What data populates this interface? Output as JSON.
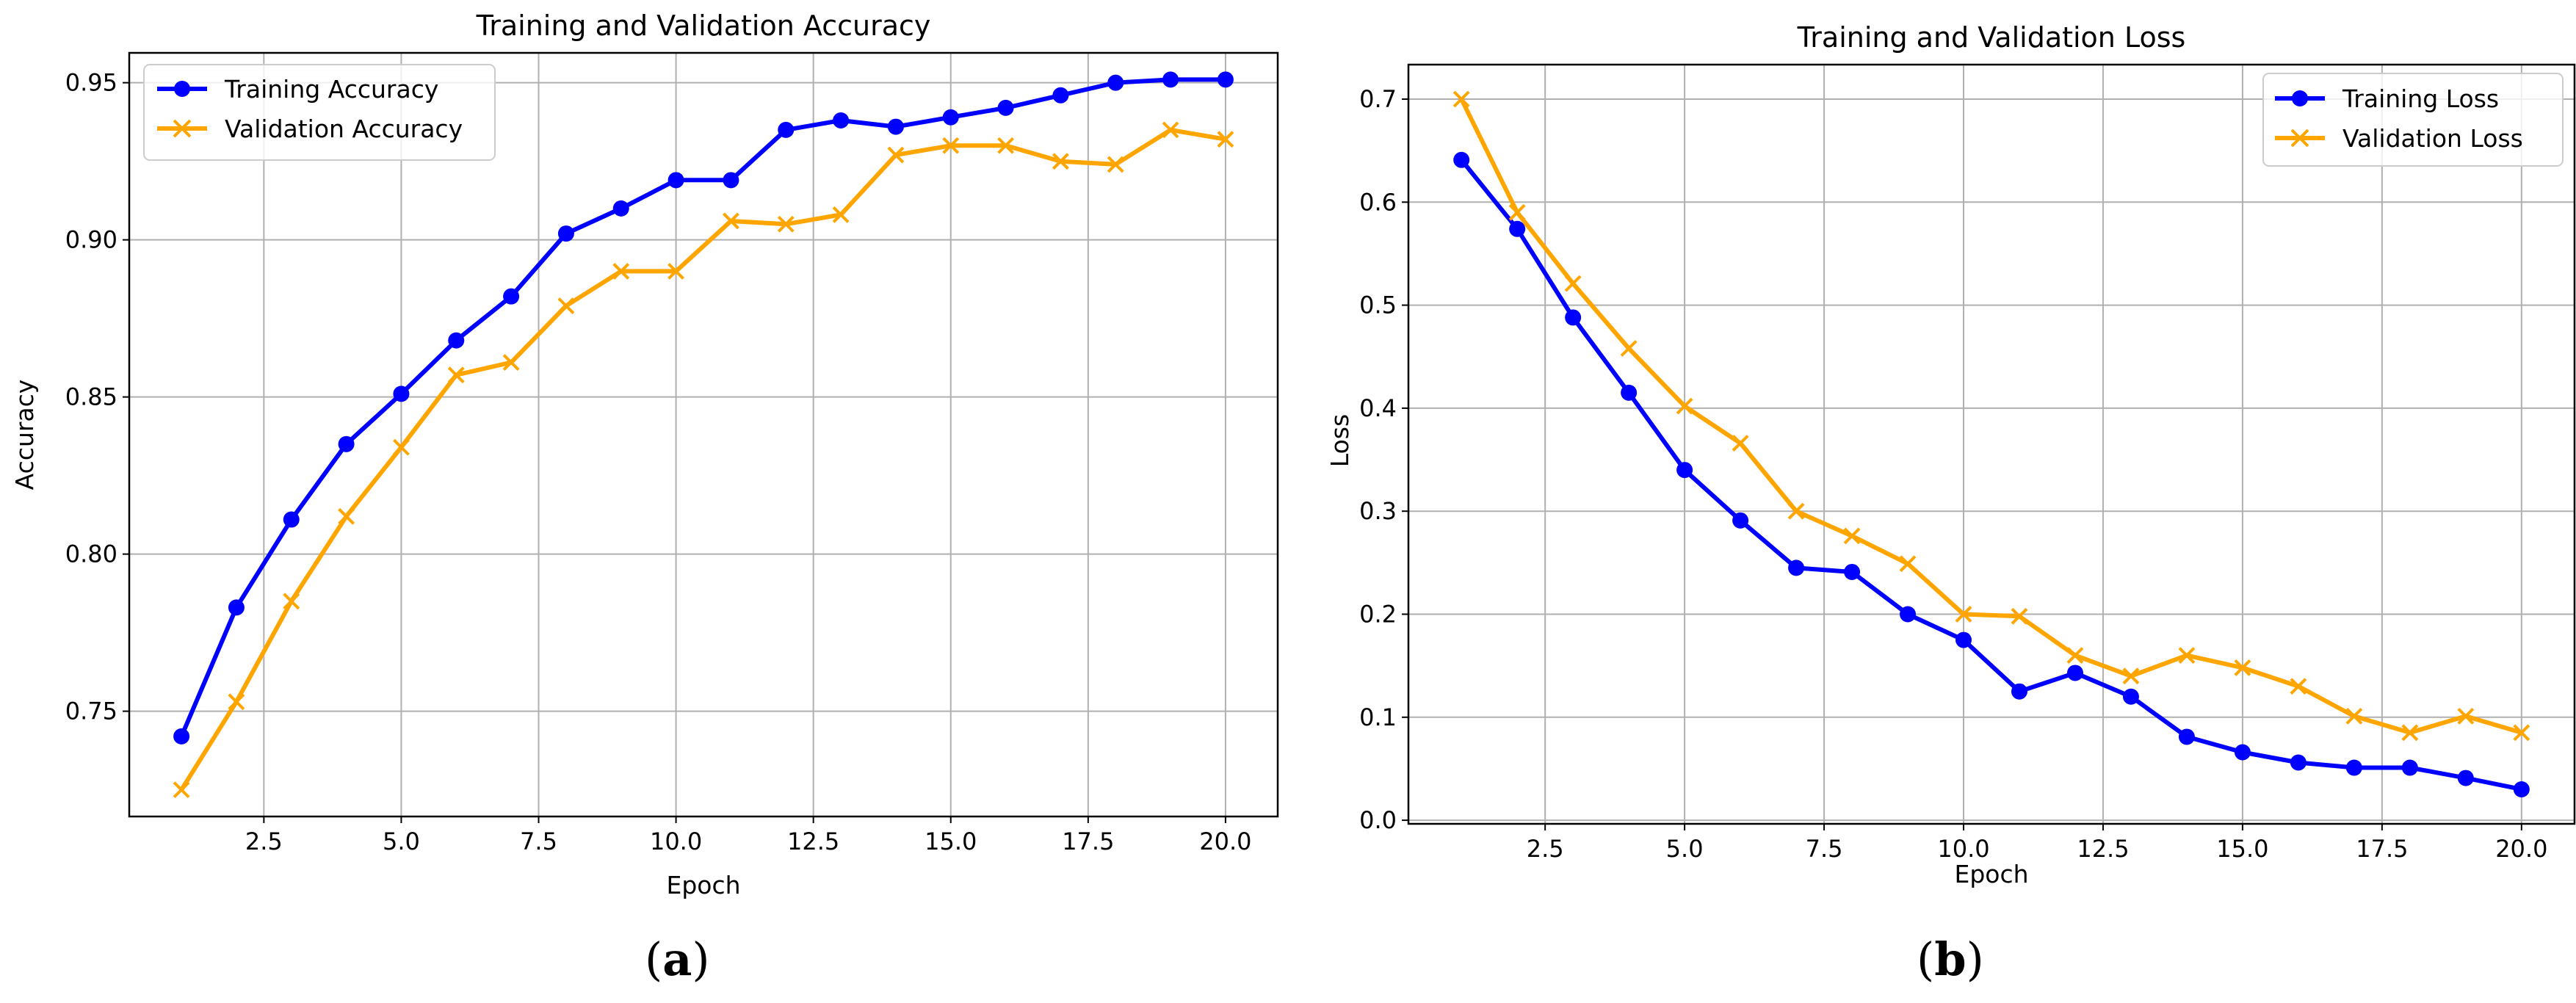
{
  "chart_data": [
    {
      "type": "line",
      "panel_label": "(a)",
      "panel_label_parts": {
        "open": "(",
        "letter": "a",
        "close": ")"
      },
      "title": "Training and Validation Accuracy",
      "xlabel": "Epoch",
      "ylabel": "Accuracy",
      "x": [
        1,
        2,
        3,
        4,
        5,
        6,
        7,
        8,
        9,
        10,
        11,
        12,
        13,
        14,
        15,
        16,
        17,
        18,
        19,
        20
      ],
      "xlim": [
        0.05,
        20.95
      ],
      "ylim": [
        0.7165,
        0.9595
      ],
      "xticks": [
        2.5,
        5.0,
        7.5,
        10.0,
        12.5,
        15.0,
        17.5,
        20.0
      ],
      "xtick_labels": [
        "2.5",
        "5.0",
        "7.5",
        "10.0",
        "12.5",
        "15.0",
        "17.5",
        "20.0"
      ],
      "yticks": [
        0.75,
        0.8,
        0.85,
        0.9,
        0.95
      ],
      "ytick_labels": [
        "0.75",
        "0.80",
        "0.85",
        "0.90",
        "0.95"
      ],
      "grid": true,
      "legend_position": "top-left",
      "series": [
        {
          "name": "Training Accuracy",
          "color": "#0000ff",
          "marker": "circle",
          "values": [
            0.742,
            0.783,
            0.811,
            0.835,
            0.851,
            0.868,
            0.882,
            0.902,
            0.91,
            0.919,
            0.919,
            0.935,
            0.938,
            0.936,
            0.939,
            0.942,
            0.946,
            0.95,
            0.951,
            0.951
          ]
        },
        {
          "name": "Validation Accuracy",
          "color": "#ffa500",
          "marker": "x",
          "values": [
            0.725,
            0.753,
            0.785,
            0.812,
            0.834,
            0.857,
            0.861,
            0.879,
            0.89,
            0.89,
            0.906,
            0.905,
            0.908,
            0.927,
            0.93,
            0.93,
            0.925,
            0.924,
            0.935,
            0.932
          ]
        }
      ]
    },
    {
      "type": "line",
      "panel_label": "(b)",
      "panel_label_parts": {
        "open": "(",
        "letter": "b",
        "close": ")"
      },
      "title": "Training and Validation Loss",
      "xlabel": "Epoch",
      "ylabel": "Loss",
      "x": [
        1,
        2,
        3,
        4,
        5,
        6,
        7,
        8,
        9,
        10,
        11,
        12,
        13,
        14,
        15,
        16,
        17,
        18,
        19,
        20
      ],
      "xlim": [
        0.05,
        20.95
      ],
      "ylim": [
        -0.0035,
        0.7335
      ],
      "xticks": [
        2.5,
        5.0,
        7.5,
        10.0,
        12.5,
        15.0,
        17.5,
        20.0
      ],
      "xtick_labels": [
        "2.5",
        "5.0",
        "7.5",
        "10.0",
        "12.5",
        "15.0",
        "17.5",
        "20.0"
      ],
      "yticks": [
        0.0,
        0.1,
        0.2,
        0.3,
        0.4,
        0.5,
        0.6,
        0.7
      ],
      "ytick_labels": [
        "0.0",
        "0.1",
        "0.2",
        "0.3",
        "0.4",
        "0.5",
        "0.6",
        "0.7"
      ],
      "grid": true,
      "legend_position": "top-right",
      "series": [
        {
          "name": "Training Loss",
          "color": "#0000ff",
          "marker": "circle",
          "values": [
            0.641,
            0.574,
            0.488,
            0.415,
            0.34,
            0.291,
            0.245,
            0.241,
            0.2,
            0.175,
            0.125,
            0.143,
            0.12,
            0.081,
            0.066,
            0.056,
            0.051,
            0.051,
            0.041,
            0.03
          ]
        },
        {
          "name": "Validation Loss",
          "color": "#ffa500",
          "marker": "x",
          "values": [
            0.7,
            0.59,
            0.521,
            0.458,
            0.402,
            0.366,
            0.3,
            0.276,
            0.249,
            0.2,
            0.198,
            0.16,
            0.14,
            0.16,
            0.148,
            0.13,
            0.101,
            0.085,
            0.101,
            0.085
          ]
        }
      ]
    }
  ]
}
